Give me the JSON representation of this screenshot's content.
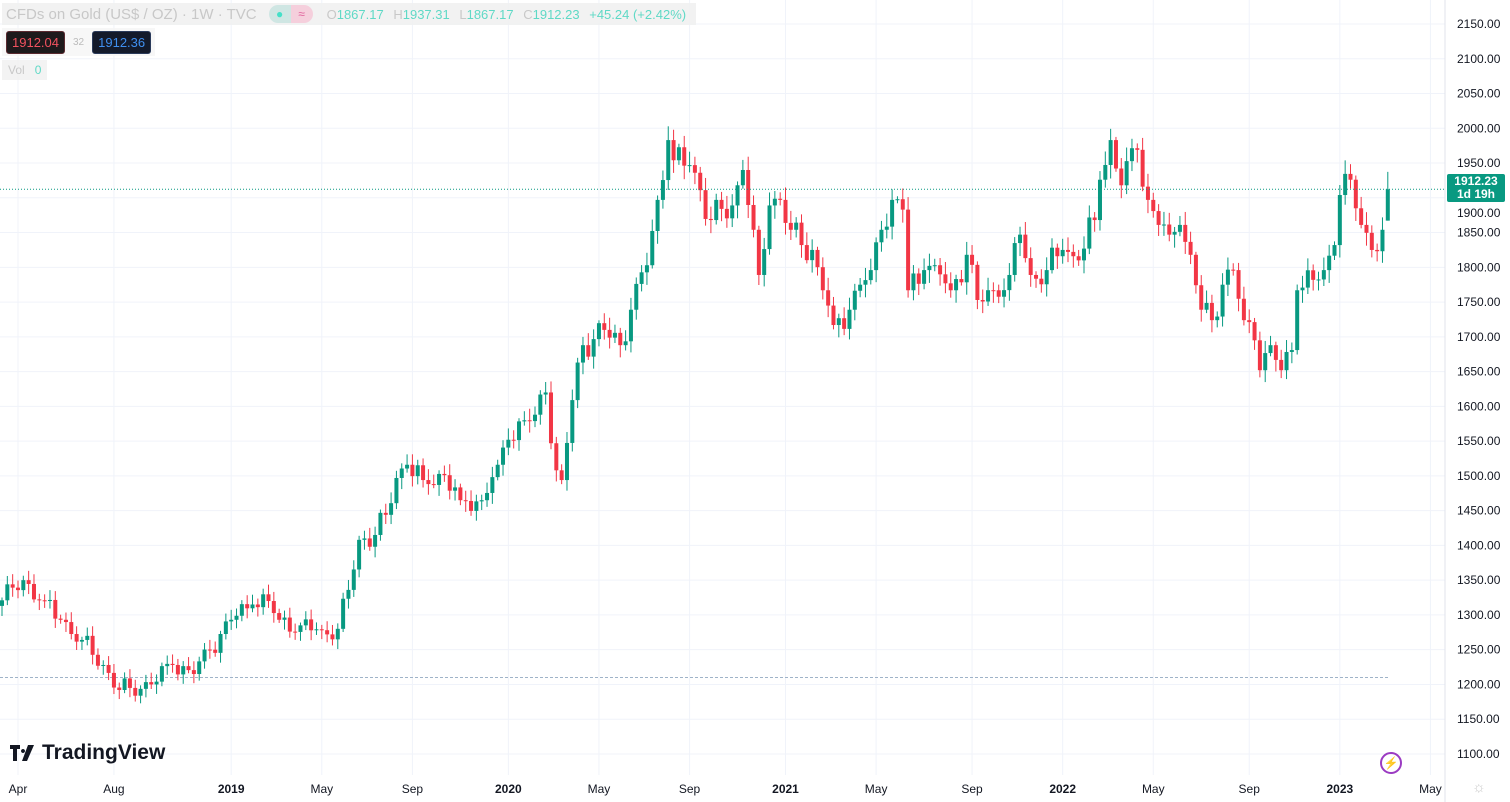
{
  "legend": {
    "title": "CFDs on Gold (US$ / OZ) · 1W · TVC",
    "status_icons": [
      "market-open-dot-icon",
      "delayed-data-icon"
    ],
    "delayed_glyph": "≈",
    "o_label": "O",
    "o": "1867.17",
    "h_label": "H",
    "h": "1937.31",
    "l_label": "L",
    "l": "1867.17",
    "c_label": "C",
    "c": "1912.23",
    "change": "+45.24 (+2.42%)",
    "sell_price": "1912.04",
    "spread": "32",
    "buy_price": "1912.36",
    "vol_label": "Vol",
    "vol_value": "0"
  },
  "price_tag": {
    "price": "1912.23",
    "countdown": "1d 19h"
  },
  "brand": "TradingView",
  "colors": {
    "up": "#089981",
    "down": "#f23645",
    "grid": "#f0f3fa",
    "axis_text": "#131722"
  },
  "chart_data": {
    "type": "candlestick",
    "title": "CFDs on Gold (US$ / OZ) · 1W · TVC",
    "interval": "1W",
    "x_unit": "week index",
    "ylim": [
      1075,
      2175
    ],
    "y_ticks": [
      1100,
      1150,
      1200,
      1250,
      1300,
      1350,
      1400,
      1450,
      1500,
      1550,
      1600,
      1650,
      1700,
      1750,
      1800,
      1850,
      1900,
      1950,
      2000,
      2050,
      2100,
      2150
    ],
    "x_ticks": [
      {
        "label": "Apr",
        "week": 3
      },
      {
        "label": "Aug",
        "week": 21
      },
      {
        "label": "2019",
        "week": 43,
        "bold": true
      },
      {
        "label": "May",
        "week": 60
      },
      {
        "label": "Sep",
        "week": 77
      },
      {
        "label": "2020",
        "week": 95,
        "bold": true
      },
      {
        "label": "May",
        "week": 112
      },
      {
        "label": "Sep",
        "week": 129
      },
      {
        "label": "2021",
        "week": 147,
        "bold": true
      },
      {
        "label": "May",
        "week": 164
      },
      {
        "label": "Sep",
        "week": 182
      },
      {
        "label": "2022",
        "week": 199,
        "bold": true
      },
      {
        "label": "May",
        "week": 216
      },
      {
        "label": "Sep",
        "week": 234
      },
      {
        "label": "2023",
        "week": 251,
        "bold": true
      },
      {
        "label": "May",
        "week": 268
      }
    ],
    "grid": true,
    "last_price_line": 1912.23,
    "horizontal_line": 1210,
    "close_keypoints": [
      [
        0,
        1321
      ],
      [
        4,
        1350
      ],
      [
        8,
        1320
      ],
      [
        11,
        1293
      ],
      [
        15,
        1264
      ],
      [
        19,
        1228
      ],
      [
        22,
        1192
      ],
      [
        24,
        1195
      ],
      [
        28,
        1200
      ],
      [
        32,
        1228
      ],
      [
        36,
        1215
      ],
      [
        39,
        1250
      ],
      [
        43,
        1293
      ],
      [
        47,
        1315
      ],
      [
        50,
        1320
      ],
      [
        52,
        1293
      ],
      [
        56,
        1285
      ],
      [
        60,
        1278
      ],
      [
        63,
        1280
      ],
      [
        65,
        1336
      ],
      [
        67,
        1408
      ],
      [
        70,
        1415
      ],
      [
        72,
        1444
      ],
      [
        74,
        1497
      ],
      [
        76,
        1516
      ],
      [
        79,
        1494
      ],
      [
        83,
        1501
      ],
      [
        86,
        1465
      ],
      [
        90,
        1465
      ],
      [
        93,
        1516
      ],
      [
        95,
        1552
      ],
      [
        98,
        1580
      ],
      [
        100,
        1588
      ],
      [
        102,
        1620
      ],
      [
        104,
        1508
      ],
      [
        105,
        1494
      ],
      [
        107,
        1609
      ],
      [
        109,
        1688
      ],
      [
        113,
        1710
      ],
      [
        116,
        1688
      ],
      [
        118,
        1739
      ],
      [
        121,
        1803
      ],
      [
        123,
        1897
      ],
      [
        125,
        1983
      ],
      [
        126,
        1954
      ],
      [
        129,
        1947
      ],
      [
        131,
        1911
      ],
      [
        133,
        1868
      ],
      [
        137,
        1889
      ],
      [
        139,
        1940
      ],
      [
        141,
        1854
      ],
      [
        142,
        1789
      ],
      [
        144,
        1889
      ],
      [
        146,
        1897
      ],
      [
        148,
        1854
      ],
      [
        150,
        1832
      ],
      [
        152,
        1825
      ],
      [
        154,
        1767
      ],
      [
        156,
        1717
      ],
      [
        159,
        1739
      ],
      [
        161,
        1775
      ],
      [
        163,
        1796
      ],
      [
        165,
        1854
      ],
      [
        167,
        1897
      ],
      [
        169,
        1883
      ],
      [
        170,
        1767
      ],
      [
        173,
        1796
      ],
      [
        175,
        1803
      ],
      [
        178,
        1767
      ],
      [
        181,
        1818
      ],
      [
        183,
        1753
      ],
      [
        186,
        1767
      ],
      [
        189,
        1789
      ],
      [
        191,
        1847
      ],
      [
        193,
        1789
      ],
      [
        196,
        1796
      ],
      [
        199,
        1825
      ],
      [
        202,
        1810
      ],
      [
        205,
        1868
      ],
      [
        206,
        1926
      ],
      [
        208,
        1983
      ],
      [
        210,
        1918
      ],
      [
        213,
        1969
      ],
      [
        215,
        1897
      ],
      [
        217,
        1861
      ],
      [
        219,
        1847
      ],
      [
        221,
        1861
      ],
      [
        223,
        1818
      ],
      [
        225,
        1739
      ],
      [
        227,
        1724
      ],
      [
        229,
        1775
      ],
      [
        231,
        1796
      ],
      [
        233,
        1724
      ],
      [
        235,
        1695
      ],
      [
        236,
        1652
      ],
      [
        238,
        1688
      ],
      [
        240,
        1652
      ],
      [
        242,
        1681
      ],
      [
        243,
        1767
      ],
      [
        246,
        1782
      ],
      [
        248,
        1796
      ],
      [
        250,
        1832
      ],
      [
        251,
        1904
      ],
      [
        253,
        1926
      ],
      [
        255,
        1861
      ],
      [
        257,
        1825
      ],
      [
        259,
        1854
      ],
      [
        260,
        1867.17
      ]
    ],
    "last_candle": {
      "open": 1867.17,
      "high": 1937.31,
      "low": 1867.17,
      "close": 1912.23
    }
  }
}
